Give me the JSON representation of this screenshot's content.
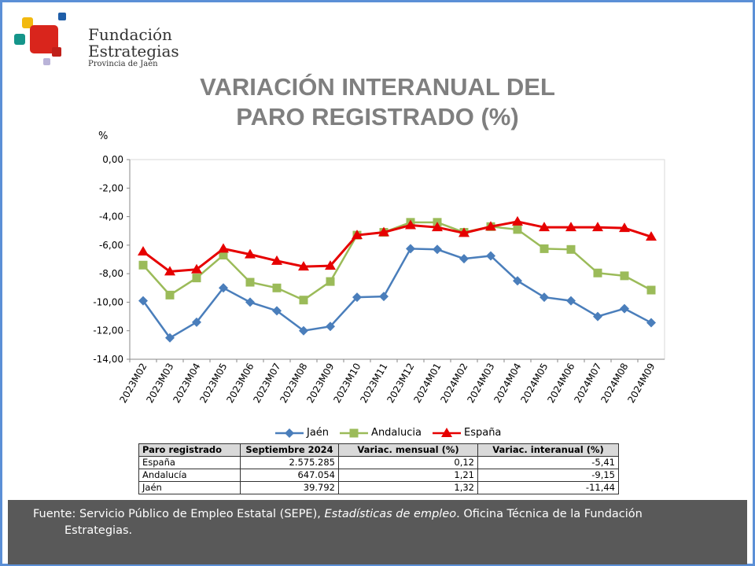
{
  "logo": {
    "line1": "Fundación",
    "line2": "Estrategias",
    "line3": "Provincia de Jaén"
  },
  "title_line1": "VARIACIÓN INTERANUAL DEL",
  "title_line2": "PARO REGISTRADO (%)",
  "chart_data": {
    "type": "line",
    "title": "VARIACIÓN INTERANUAL DEL PARO REGISTRADO (%)",
    "ylabel": "%",
    "ylim": [
      -14,
      0
    ],
    "yticks": [
      "0,00",
      "-2,00",
      "-4,00",
      "-6,00",
      "-8,00",
      "-10,00",
      "-12,00",
      "-14,00"
    ],
    "grid": false,
    "legend": "bottom",
    "categories": [
      "2023M02",
      "2023M03",
      "2023M04",
      "2023M05",
      "2023M06",
      "2023M07",
      "2023M08",
      "2023M09",
      "2023M10",
      "2023M11",
      "2023M12",
      "2024M01",
      "2024M02",
      "2024M03",
      "2024M04",
      "2024M05",
      "2024M06",
      "2024M07",
      "2024M08",
      "2024M09"
    ],
    "series": [
      {
        "name": "Jaén",
        "color": "#4a7ebb",
        "marker": "diamond",
        "values": [
          -9.9,
          -12.5,
          -11.4,
          -9.0,
          -10.0,
          -10.6,
          -12.0,
          -11.7,
          -9.65,
          -9.6,
          -6.25,
          -6.3,
          -6.95,
          -6.75,
          -8.5,
          -9.65,
          -9.9,
          -11.0,
          -10.45,
          -11.44
        ]
      },
      {
        "name": "Andalucia",
        "color": "#9bbb59",
        "marker": "square",
        "values": [
          -7.4,
          -9.5,
          -8.3,
          -6.7,
          -8.6,
          -9.0,
          -9.85,
          -8.55,
          -5.3,
          -5.1,
          -4.4,
          -4.4,
          -5.1,
          -4.7,
          -4.9,
          -6.25,
          -6.3,
          -7.95,
          -8.15,
          -9.15
        ]
      },
      {
        "name": "España",
        "color": "#e60000",
        "marker": "triangle",
        "values": [
          -6.45,
          -7.85,
          -7.7,
          -6.25,
          -6.65,
          -7.1,
          -7.5,
          -7.45,
          -5.3,
          -5.1,
          -4.6,
          -4.75,
          -5.15,
          -4.7,
          -4.35,
          -4.75,
          -4.75,
          -4.75,
          -4.8,
          -5.41
        ]
      }
    ]
  },
  "table": {
    "headers": [
      "Paro registrado",
      "Septiembre 2024",
      "Variac. mensual (%)",
      "Variac. interanual (%)"
    ],
    "rows": [
      [
        "España",
        "2.575.285",
        "0,12",
        "-5,41"
      ],
      [
        "Andalucía",
        "647.054",
        "1,21",
        "-9,15"
      ],
      [
        "Jaén",
        "39.792",
        "1,32",
        "-11,44"
      ]
    ]
  },
  "footer": {
    "part1": "Fuente: Servicio Público de Empleo Estatal (SEPE), ",
    "italic": "Estadísticas de empleo",
    "part2": ". Oficina Técnica de la Fundación",
    "part3": "Estrategias."
  }
}
